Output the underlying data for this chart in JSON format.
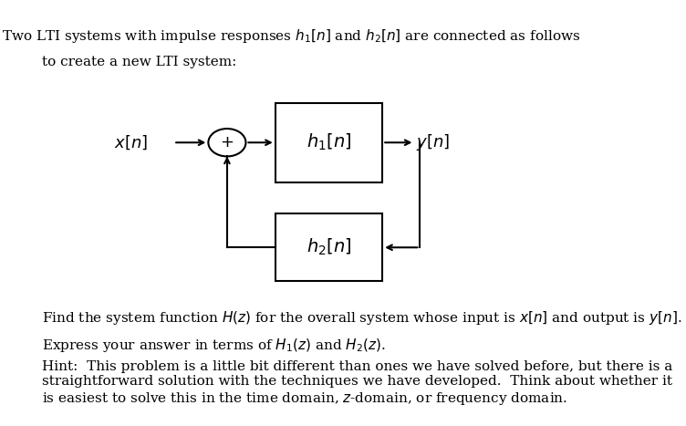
{
  "bg_color": "#ffffff",
  "fig_width": 7.52,
  "fig_height": 4.67,
  "dpi": 100,
  "top_text_line1": "Two LTI systems with impulse responses $h_1[n]$ and $h_2[n]$ are connected as follows",
  "top_text_line2": "to create a new LTI system:",
  "bottom_text1": "Find the system function $H(z)$ for the overall system whose input is $x[n]$ and output is $y[n]$.",
  "bottom_text2": "Express your answer in terms of $H_1(z)$ and $H_2(z)$.",
  "hint_text": "Hint:  This problem is a little bit different than ones we have solved before, but there is a straightforward solution with the techniques we have developed.  Think about whether it is easiest to solve this in the time domain, $z$-domain, or frequency domain.",
  "label_xn": "$x[n]$",
  "label_yn": "$y[n]$",
  "label_h1": "$h_1[n]$",
  "label_h2": "$h_2[n]$",
  "label_plus": "$+$",
  "box_color": "#000000",
  "text_color": "#000000",
  "font_size_body": 11,
  "font_size_label": 13,
  "font_size_box": 14
}
